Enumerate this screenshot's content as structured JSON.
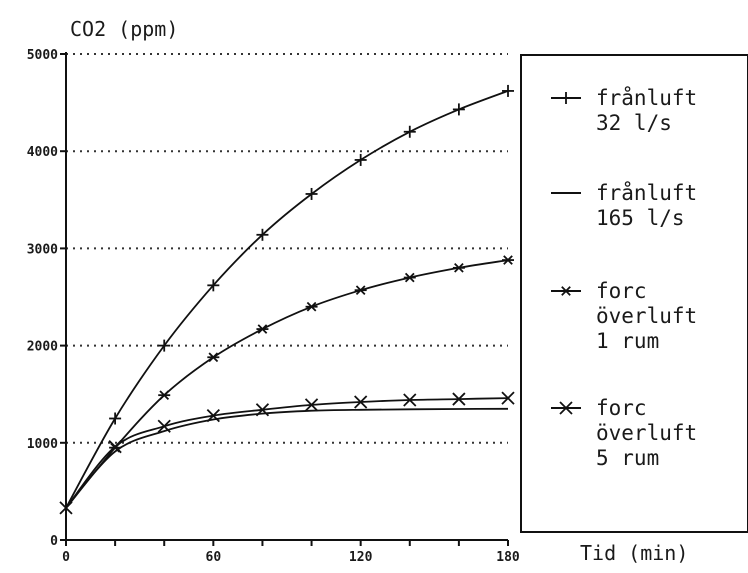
{
  "chart_data": {
    "type": "line",
    "ylabel": "CO2 (ppm)",
    "xlabel": "Tid (min)",
    "x": [
      0,
      20,
      40,
      60,
      80,
      100,
      120,
      140,
      160,
      180
    ],
    "xlim": [
      0,
      180
    ],
    "ylim": [
      0,
      5000
    ],
    "x_ticks": [
      "0",
      "60",
      "120",
      "180"
    ],
    "y_ticks": [
      "0",
      "1000",
      "2000",
      "3000",
      "4000",
      "5000"
    ],
    "grid": "horizontal dotted",
    "legend_position": "right",
    "series": [
      {
        "name": "frånluft 32 l/s",
        "label_lines": [
          "frånluft",
          "32 l/s"
        ],
        "marker": "plus",
        "values": [
          330,
          1250,
          2000,
          2620,
          3140,
          3560,
          3910,
          4200,
          4430,
          4620
        ]
      },
      {
        "name": "frånluft 165 l/s",
        "label_lines": [
          "frånluft",
          "165 l/s"
        ],
        "marker": "none",
        "values": [
          330,
          910,
          1120,
          1240,
          1300,
          1330,
          1340,
          1345,
          1348,
          1350
        ]
      },
      {
        "name": "forc överluft 1 rum",
        "label_lines": [
          "forc",
          "överluft",
          "1 rum"
        ],
        "marker": "asterisk",
        "values": [
          330,
          950,
          1490,
          1880,
          2170,
          2400,
          2570,
          2700,
          2800,
          2880
        ]
      },
      {
        "name": "forc överluft 5 rum",
        "label_lines": [
          "forc",
          "överluft",
          "5 rum"
        ],
        "marker": "cross",
        "values": [
          330,
          960,
          1170,
          1280,
          1340,
          1390,
          1420,
          1440,
          1450,
          1460
        ]
      }
    ]
  }
}
